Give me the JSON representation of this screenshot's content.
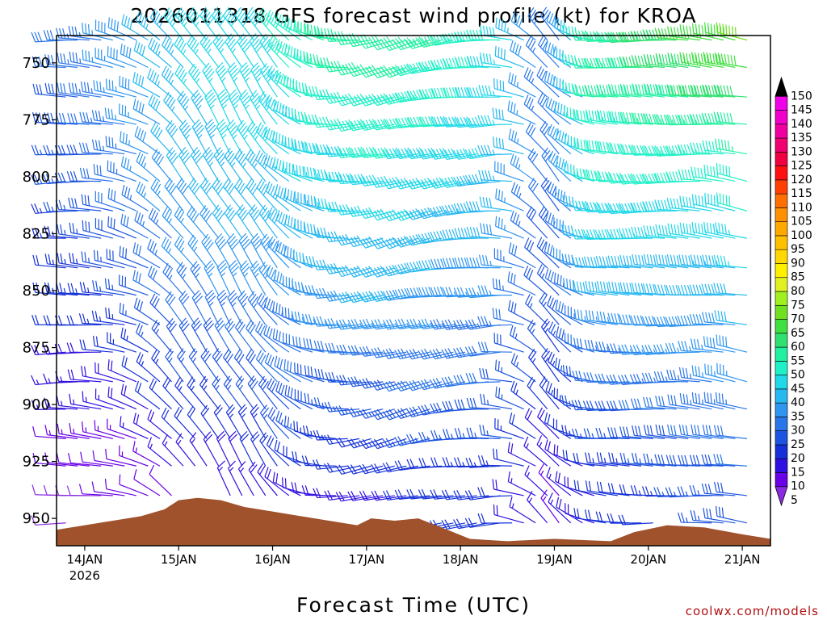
{
  "chart_data": {
    "type": "wind-barb-profile",
    "title": "2026011318 GFS forecast wind profile (kt) for KROA",
    "xlabel": "Forecast Time (UTC)",
    "credit": "coolwx.com/models",
    "y_levels": [
      750,
      775,
      800,
      825,
      850,
      875,
      900,
      925,
      950
    ],
    "y_range": [
      738,
      962
    ],
    "x_range": [
      -0.3,
      7.3
    ],
    "x_ticks": [
      {
        "day": 0,
        "label": "14JAN",
        "year": "2026"
      },
      {
        "day": 1,
        "label": "15JAN"
      },
      {
        "day": 2,
        "label": "16JAN"
      },
      {
        "day": 3,
        "label": "17JAN"
      },
      {
        "day": 4,
        "label": "18JAN"
      },
      {
        "day": 5,
        "label": "19JAN"
      },
      {
        "day": 6,
        "label": "20JAN"
      },
      {
        "day": 7,
        "label": "21JAN"
      }
    ],
    "barb_levels": [
      740,
      752,
      765,
      777,
      790,
      802,
      815,
      827,
      840,
      852,
      865,
      877,
      890,
      902,
      915,
      927,
      940,
      952
    ],
    "wind_profile": [
      {
        "t": -0.2,
        "dir": 270,
        "spd": [
          30,
          30,
          28,
          28,
          26,
          26,
          24,
          24,
          22,
          22,
          20,
          18,
          16,
          15,
          12,
          10,
          8,
          8
        ]
      },
      {
        "t": 0.2,
        "dir": 275,
        "spd": [
          35,
          34,
          33,
          32,
          30,
          30,
          28,
          27,
          25,
          24,
          22,
          20,
          18,
          16,
          14,
          12,
          10,
          10
        ]
      },
      {
        "t": 0.6,
        "dir": 290,
        "spd": [
          40,
          38,
          38,
          36,
          35,
          34,
          32,
          30,
          28,
          27,
          25,
          23,
          20,
          18,
          15,
          12,
          10,
          10
        ]
      },
      {
        "t": 1.0,
        "dir": 320,
        "spd": [
          45,
          44,
          44,
          43,
          42,
          40,
          38,
          36,
          35,
          33,
          30,
          28,
          25,
          22,
          20,
          16,
          12,
          12
        ]
      },
      {
        "t": 1.5,
        "dir": 330,
        "spd": [
          48,
          47,
          47,
          46,
          45,
          44,
          42,
          40,
          38,
          36,
          33,
          30,
          28,
          25,
          22,
          18,
          15,
          15
        ]
      },
      {
        "t": 2.0,
        "dir": 325,
        "spd": [
          50,
          48,
          47,
          46,
          45,
          44,
          42,
          40,
          38,
          36,
          34,
          32,
          30,
          28,
          25,
          22,
          18,
          18
        ]
      },
      {
        "t": 2.5,
        "dir": 285,
        "spd": [
          55,
          54,
          52,
          50,
          48,
          46,
          44,
          42,
          40,
          38,
          35,
          32,
          30,
          28,
          25,
          22,
          20,
          20
        ]
      },
      {
        "t": 3.0,
        "dir": 260,
        "spd": [
          60,
          58,
          55,
          52,
          50,
          48,
          46,
          44,
          42,
          40,
          35,
          30,
          28,
          25,
          22,
          20,
          18,
          18
        ]
      },
      {
        "t": 3.5,
        "dir": 255,
        "spd": [
          58,
          56,
          54,
          52,
          50,
          48,
          46,
          44,
          42,
          40,
          36,
          32,
          30,
          28,
          25,
          22,
          20,
          20
        ]
      },
      {
        "t": 4.0,
        "dir": 262,
        "spd": [
          55,
          53,
          52,
          50,
          48,
          46,
          44,
          42,
          40,
          38,
          35,
          32,
          30,
          28,
          25,
          22,
          20,
          20
        ]
      },
      {
        "t": 4.5,
        "dir": 268,
        "spd": [
          50,
          49,
          48,
          47,
          46,
          44,
          42,
          40,
          38,
          36,
          34,
          32,
          30,
          28,
          26,
          24,
          22,
          22
        ]
      },
      {
        "t": 5.0,
        "dir": 325,
        "spd": [
          30,
          30,
          30,
          30,
          30,
          30,
          28,
          28,
          26,
          26,
          25,
          24,
          22,
          20,
          18,
          16,
          14,
          14
        ]
      },
      {
        "t": 5.5,
        "dir": 275,
        "spd": [
          55,
          55,
          55,
          54,
          52,
          50,
          48,
          45,
          42,
          40,
          36,
          32,
          30,
          28,
          25,
          22,
          20,
          20
        ]
      },
      {
        "t": 6.0,
        "dir": 270,
        "spd": [
          62,
          60,
          58,
          55,
          52,
          50,
          48,
          45,
          42,
          40,
          38,
          35,
          32,
          30,
          28,
          25,
          22,
          22
        ]
      },
      {
        "t": 6.5,
        "dir": 272,
        "spd": [
          66,
          64,
          60,
          56,
          53,
          50,
          48,
          45,
          42,
          40,
          38,
          36,
          34,
          32,
          30,
          28,
          26,
          26
        ]
      },
      {
        "t": 7.0,
        "dir": 280,
        "spd": [
          70,
          68,
          62,
          58,
          55,
          52,
          50,
          47,
          45,
          42,
          40,
          38,
          36,
          34,
          32,
          30,
          28,
          28
        ]
      }
    ],
    "terrain_surface_hpa": [
      {
        "t": -0.3,
        "p": 955
      },
      {
        "t": 0.0,
        "p": 953
      },
      {
        "t": 0.3,
        "p": 951
      },
      {
        "t": 0.6,
        "p": 949
      },
      {
        "t": 0.85,
        "p": 946
      },
      {
        "t": 1.0,
        "p": 942
      },
      {
        "t": 1.2,
        "p": 941
      },
      {
        "t": 1.45,
        "p": 942
      },
      {
        "t": 1.7,
        "p": 945
      },
      {
        "t": 2.0,
        "p": 947
      },
      {
        "t": 2.3,
        "p": 949
      },
      {
        "t": 2.6,
        "p": 951
      },
      {
        "t": 2.9,
        "p": 953
      },
      {
        "t": 3.05,
        "p": 950
      },
      {
        "t": 3.3,
        "p": 951
      },
      {
        "t": 3.55,
        "p": 950
      },
      {
        "t": 3.8,
        "p": 954
      },
      {
        "t": 4.1,
        "p": 959
      },
      {
        "t": 4.5,
        "p": 960
      },
      {
        "t": 5.0,
        "p": 959
      },
      {
        "t": 5.6,
        "p": 960
      },
      {
        "t": 5.85,
        "p": 956
      },
      {
        "t": 6.2,
        "p": 953
      },
      {
        "t": 6.6,
        "p": 954
      },
      {
        "t": 7.0,
        "p": 957
      },
      {
        "t": 7.3,
        "p": 959
      }
    ],
    "colorbar": {
      "values": [
        5,
        10,
        15,
        20,
        25,
        30,
        35,
        40,
        45,
        50,
        55,
        60,
        65,
        70,
        75,
        80,
        85,
        90,
        95,
        100,
        105,
        110,
        115,
        120,
        125,
        130,
        135,
        140,
        145,
        150
      ],
      "colors": [
        "#8a2be2",
        "#6a00e6",
        "#3010e0",
        "#1530d8",
        "#1e55e0",
        "#2a75e8",
        "#2e95f0",
        "#28b8f0",
        "#20d8e8",
        "#20f0c8",
        "#20f0a0",
        "#30e070",
        "#40e040",
        "#70e020",
        "#a0f020",
        "#e0f020",
        "#fff000",
        "#ffd800",
        "#ffc000",
        "#ffa800",
        "#ff9000",
        "#ff7000",
        "#ff4000",
        "#ff1010",
        "#f00040",
        "#f00070",
        "#f000a0",
        "#f000c8",
        "#f000e8",
        "#000000"
      ]
    },
    "colors": {
      "terrain": "#a0522d",
      "frame": "#000000"
    }
  }
}
